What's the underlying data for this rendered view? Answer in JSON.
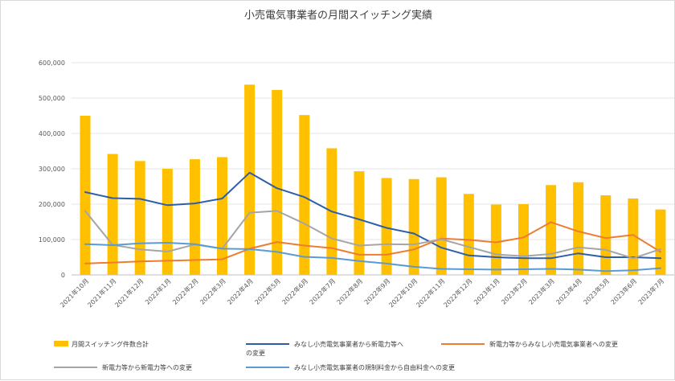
{
  "chart_data": {
    "type": "bar+line",
    "title": "小売電気事業者の月間スイッチング実績",
    "ylim": [
      0,
      600000
    ],
    "yticks": [
      "0",
      "100,000",
      "200,000",
      "300,000",
      "400,000",
      "500,000",
      "600,000"
    ],
    "ytick_values": [
      0,
      100000,
      200000,
      300000,
      400000,
      500000,
      600000
    ],
    "categories": [
      "2021年10月",
      "2021年11月",
      "2021年12月",
      "2022年1月",
      "2022年2月",
      "2022年3月",
      "2022年4月",
      "2022年5月",
      "2022年6月",
      "2022年7月",
      "2022年8月",
      "2022年9月",
      "2022年10月",
      "2022年11月",
      "2022年12月",
      "2023年1月",
      "2023年2月",
      "2023年3月",
      "2023年4月",
      "2023年5月",
      "2023年6月",
      "2023年7月"
    ],
    "grid": true,
    "legend_position": "bottom",
    "series": [
      {
        "name": "月間スイッチング件数合計",
        "kind": "bar",
        "color": "#FFC000",
        "values": [
          450000,
          342000,
          322000,
          300000,
          327000,
          333000,
          538000,
          523000,
          452000,
          358000,
          293000,
          274000,
          271000,
          276000,
          229000,
          199000,
          200000,
          254000,
          262000,
          225000,
          216000,
          185000
        ]
      },
      {
        "name": "みなし小売電気事業者から新電力等への変更",
        "kind": "line",
        "color": "#2E5EA8",
        "values": [
          234000,
          217000,
          215000,
          197000,
          202000,
          216000,
          289000,
          245000,
          220000,
          179000,
          157000,
          133000,
          117000,
          77000,
          55000,
          50000,
          47000,
          47000,
          61000,
          50000,
          50000,
          47000
        ]
      },
      {
        "name": "新電力等からみなし小売電気事業者への変更",
        "kind": "line",
        "color": "#ED7D31",
        "values": [
          32000,
          35000,
          38000,
          40000,
          42000,
          44000,
          74000,
          93000,
          83000,
          76000,
          57000,
          57000,
          72000,
          103000,
          99000,
          92000,
          106000,
          149000,
          123000,
          104000,
          113000,
          65000
        ]
      },
      {
        "name": "新電力等から新電力等への変更",
        "kind": "line",
        "color": "#A5A5A5",
        "values": [
          181000,
          85000,
          72000,
          66000,
          86000,
          74000,
          176000,
          181000,
          145000,
          103000,
          83000,
          87000,
          86000,
          101000,
          79000,
          58000,
          53000,
          59000,
          78000,
          71000,
          47000,
          73000
        ]
      },
      {
        "name": "みなし小売電気事業者の規制料金から自由料金への変更",
        "kind": "line",
        "color": "#5B9BD5",
        "values": [
          87000,
          84000,
          89000,
          91000,
          87000,
          74000,
          73000,
          65000,
          51000,
          48000,
          39000,
          32000,
          23000,
          17000,
          16000,
          15000,
          16000,
          17000,
          15000,
          11000,
          13000,
          19000
        ]
      }
    ]
  }
}
